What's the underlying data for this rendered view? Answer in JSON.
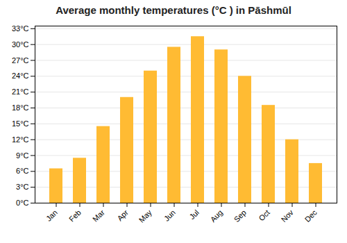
{
  "chart_data": {
    "type": "bar",
    "title": "Average monthly temperatures (°C ) in Pāshmūl",
    "categories": [
      "Jan",
      "Feb",
      "Mar",
      "Apr",
      "May",
      "Jun",
      "Jul",
      "Aug",
      "Sep",
      "Oct",
      "Nov",
      "Dec"
    ],
    "values": [
      6.5,
      8.5,
      14.5,
      20.0,
      25.0,
      29.5,
      31.5,
      29.0,
      24.0,
      18.5,
      12.0,
      7.5
    ],
    "color": "#FFBB33",
    "ylim": [
      0,
      33.5
    ],
    "yticks": [
      {
        "value": 0,
        "label": "0°C"
      },
      {
        "value": 3,
        "label": "3°C"
      },
      {
        "value": 6,
        "label": "6°C"
      },
      {
        "value": 9,
        "label": "9°C"
      },
      {
        "value": 12,
        "label": "12°C"
      },
      {
        "value": 15,
        "label": "15°C"
      },
      {
        "value": 18,
        "label": "18°C"
      },
      {
        "value": 21,
        "label": "21°C"
      },
      {
        "value": 24,
        "label": "24°C"
      },
      {
        "value": 27,
        "label": "27°C"
      },
      {
        "value": 30,
        "label": "30°C"
      },
      {
        "value": 33,
        "label": "33°C"
      }
    ],
    "grid": true
  }
}
